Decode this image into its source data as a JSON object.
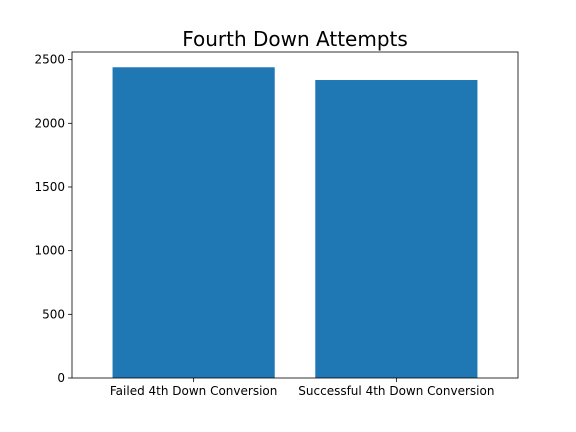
{
  "chart_data": {
    "type": "bar",
    "title": "Fourth Down Attempts",
    "xlabel": "",
    "ylabel": "",
    "categories": [
      "Failed 4th Down Conversion",
      "Successful 4th Down Conversion"
    ],
    "values": [
      2440,
      2340
    ],
    "ylim": [
      0,
      2560
    ],
    "yticks": [
      0,
      500,
      1000,
      1500,
      2000,
      2500
    ],
    "grid": false,
    "bar_color": "#1f77b4"
  }
}
